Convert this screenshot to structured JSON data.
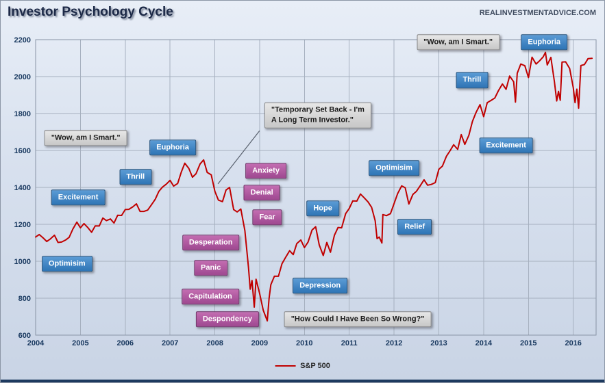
{
  "header": {
    "title": "Investor Psychology Cycle",
    "watermark": "REALINVESTMENTADVICE.COM"
  },
  "legend": {
    "label": "S&P 500"
  },
  "colors": {
    "series": "#c00000",
    "blue_box": "#2e74b5",
    "blue_border": "#1f4e79",
    "pink_box": "#9e4890",
    "pink_border": "#6f3166",
    "gray_box": "#d9d9d9",
    "gray_border": "#8a8a8a",
    "axis_text": "#17375e"
  },
  "chart_data": {
    "type": "line",
    "title": "Investor Psychology Cycle",
    "xlabel": "",
    "ylabel": "",
    "grid": true,
    "legend_position": "bottom",
    "xlim": [
      2004,
      2016.51
    ],
    "ylim": [
      600,
      2200
    ],
    "x_ticks": [
      2004,
      2005,
      2006,
      2007,
      2008,
      2009,
      2010,
      2011,
      2012,
      2013,
      2014,
      2015,
      2016
    ],
    "y_ticks": [
      600,
      800,
      1000,
      1200,
      1400,
      1600,
      1800,
      2000,
      2200
    ],
    "series": [
      {
        "name": "S&P 500",
        "color": "#c00000",
        "points": [
          [
            2004.0,
            1131
          ],
          [
            2004.08,
            1145
          ],
          [
            2004.17,
            1126
          ],
          [
            2004.25,
            1107
          ],
          [
            2004.33,
            1121
          ],
          [
            2004.42,
            1141
          ],
          [
            2004.5,
            1102
          ],
          [
            2004.58,
            1104
          ],
          [
            2004.67,
            1115
          ],
          [
            2004.75,
            1130
          ],
          [
            2004.83,
            1174
          ],
          [
            2004.92,
            1212
          ],
          [
            2005.0,
            1181
          ],
          [
            2005.08,
            1204
          ],
          [
            2005.17,
            1181
          ],
          [
            2005.25,
            1157
          ],
          [
            2005.33,
            1192
          ],
          [
            2005.42,
            1191
          ],
          [
            2005.5,
            1234
          ],
          [
            2005.58,
            1220
          ],
          [
            2005.67,
            1229
          ],
          [
            2005.75,
            1207
          ],
          [
            2005.83,
            1249
          ],
          [
            2005.92,
            1248
          ],
          [
            2006.0,
            1280
          ],
          [
            2006.08,
            1281
          ],
          [
            2006.17,
            1295
          ],
          [
            2006.25,
            1311
          ],
          [
            2006.33,
            1270
          ],
          [
            2006.42,
            1270
          ],
          [
            2006.5,
            1277
          ],
          [
            2006.58,
            1304
          ],
          [
            2006.67,
            1336
          ],
          [
            2006.75,
            1378
          ],
          [
            2006.83,
            1401
          ],
          [
            2006.92,
            1418
          ],
          [
            2007.0,
            1438
          ],
          [
            2007.08,
            1407
          ],
          [
            2007.17,
            1421
          ],
          [
            2007.25,
            1482
          ],
          [
            2007.33,
            1531
          ],
          [
            2007.42,
            1503
          ],
          [
            2007.5,
            1455
          ],
          [
            2007.58,
            1474
          ],
          [
            2007.67,
            1527
          ],
          [
            2007.75,
            1549
          ],
          [
            2007.83,
            1481
          ],
          [
            2007.92,
            1468
          ],
          [
            2008.0,
            1379
          ],
          [
            2008.08,
            1331
          ],
          [
            2008.17,
            1323
          ],
          [
            2008.25,
            1386
          ],
          [
            2008.33,
            1400
          ],
          [
            2008.42,
            1280
          ],
          [
            2008.5,
            1267
          ],
          [
            2008.58,
            1283
          ],
          [
            2008.67,
            1166
          ],
          [
            2008.75,
            969
          ],
          [
            2008.79,
            849
          ],
          [
            2008.83,
            896
          ],
          [
            2008.88,
            752
          ],
          [
            2008.92,
            903
          ],
          [
            2009.0,
            826
          ],
          [
            2009.08,
            735
          ],
          [
            2009.17,
            677
          ],
          [
            2009.21,
            798
          ],
          [
            2009.25,
            873
          ],
          [
            2009.33,
            919
          ],
          [
            2009.42,
            919
          ],
          [
            2009.5,
            987
          ],
          [
            2009.58,
            1021
          ],
          [
            2009.67,
            1057
          ],
          [
            2009.75,
            1036
          ],
          [
            2009.83,
            1096
          ],
          [
            2009.92,
            1115
          ],
          [
            2010.0,
            1074
          ],
          [
            2010.08,
            1104
          ],
          [
            2010.17,
            1169
          ],
          [
            2010.25,
            1187
          ],
          [
            2010.33,
            1089
          ],
          [
            2010.42,
            1031
          ],
          [
            2010.5,
            1102
          ],
          [
            2010.58,
            1049
          ],
          [
            2010.67,
            1141
          ],
          [
            2010.75,
            1183
          ],
          [
            2010.83,
            1181
          ],
          [
            2010.92,
            1258
          ],
          [
            2011.0,
            1286
          ],
          [
            2011.08,
            1327
          ],
          [
            2011.17,
            1326
          ],
          [
            2011.25,
            1364
          ],
          [
            2011.33,
            1345
          ],
          [
            2011.42,
            1321
          ],
          [
            2011.5,
            1292
          ],
          [
            2011.58,
            1219
          ],
          [
            2011.62,
            1123
          ],
          [
            2011.67,
            1131
          ],
          [
            2011.73,
            1099
          ],
          [
            2011.75,
            1253
          ],
          [
            2011.83,
            1247
          ],
          [
            2011.92,
            1258
          ],
          [
            2012.0,
            1312
          ],
          [
            2012.08,
            1366
          ],
          [
            2012.17,
            1408
          ],
          [
            2012.25,
            1398
          ],
          [
            2012.33,
            1310
          ],
          [
            2012.42,
            1362
          ],
          [
            2012.5,
            1379
          ],
          [
            2012.58,
            1407
          ],
          [
            2012.67,
            1441
          ],
          [
            2012.75,
            1412
          ],
          [
            2012.83,
            1416
          ],
          [
            2012.92,
            1426
          ],
          [
            2013.0,
            1498
          ],
          [
            2013.08,
            1515
          ],
          [
            2013.17,
            1569
          ],
          [
            2013.25,
            1598
          ],
          [
            2013.33,
            1631
          ],
          [
            2013.42,
            1606
          ],
          [
            2013.5,
            1686
          ],
          [
            2013.58,
            1633
          ],
          [
            2013.67,
            1682
          ],
          [
            2013.75,
            1757
          ],
          [
            2013.83,
            1806
          ],
          [
            2013.92,
            1848
          ],
          [
            2014.0,
            1783
          ],
          [
            2014.08,
            1859
          ],
          [
            2014.17,
            1872
          ],
          [
            2014.25,
            1884
          ],
          [
            2014.33,
            1924
          ],
          [
            2014.42,
            1960
          ],
          [
            2014.5,
            1931
          ],
          [
            2014.58,
            2003
          ],
          [
            2014.67,
            1972
          ],
          [
            2014.71,
            1862
          ],
          [
            2014.75,
            2018
          ],
          [
            2014.83,
            2068
          ],
          [
            2014.92,
            2059
          ],
          [
            2015.0,
            1995
          ],
          [
            2015.08,
            2105
          ],
          [
            2015.17,
            2068
          ],
          [
            2015.25,
            2086
          ],
          [
            2015.33,
            2107
          ],
          [
            2015.38,
            2131
          ],
          [
            2015.42,
            2063
          ],
          [
            2015.5,
            2104
          ],
          [
            2015.58,
            1972
          ],
          [
            2015.63,
            1868
          ],
          [
            2015.67,
            1920
          ],
          [
            2015.71,
            1872
          ],
          [
            2015.75,
            2079
          ],
          [
            2015.83,
            2080
          ],
          [
            2015.92,
            2044
          ],
          [
            2016.0,
            1940
          ],
          [
            2016.04,
            1859
          ],
          [
            2016.08,
            1932
          ],
          [
            2016.12,
            1829
          ],
          [
            2016.17,
            2060
          ],
          [
            2016.25,
            2065
          ],
          [
            2016.33,
            2097
          ],
          [
            2016.42,
            2099
          ]
        ]
      }
    ],
    "annotations": {
      "stages_positive": [
        {
          "label": "Optimisim",
          "x": 2004.7,
          "y": 985
        },
        {
          "label": "Excitement",
          "x": 2004.95,
          "y": 1344
        },
        {
          "label": "Thrill",
          "x": 2006.23,
          "y": 1456
        },
        {
          "label": "Euphoria",
          "x": 2007.06,
          "y": 1615
        },
        {
          "label": "Hope",
          "x": 2010.41,
          "y": 1285
        },
        {
          "label": "Depression",
          "x": 2010.35,
          "y": 867
        },
        {
          "label": "Relief",
          "x": 2012.46,
          "y": 1185
        },
        {
          "label": "Optimisim",
          "x": 2012.0,
          "y": 1505
        },
        {
          "label": "Excitement",
          "x": 2014.5,
          "y": 1626
        },
        {
          "label": "Thrill",
          "x": 2013.74,
          "y": 1980
        },
        {
          "label": "Euphoria",
          "x": 2015.35,
          "y": 2185
        }
      ],
      "stages_negative": [
        {
          "label": "Anxiety",
          "x": 2009.14,
          "y": 1490
        },
        {
          "label": "Denial",
          "x": 2009.05,
          "y": 1370
        },
        {
          "label": "Fear",
          "x": 2009.17,
          "y": 1237
        },
        {
          "label": "Desperation",
          "x": 2007.91,
          "y": 1100
        },
        {
          "label": "Panic",
          "x": 2007.91,
          "y": 963
        },
        {
          "label": "Capitulation",
          "x": 2007.9,
          "y": 807
        },
        {
          "label": "Despondency",
          "x": 2008.28,
          "y": 685
        }
      ],
      "quotes": [
        {
          "text": "\"Wow, am I Smart.\"",
          "x": 2005.12,
          "y": 1667
        },
        {
          "text": "\"Temporary Set Back - I'm\nA Long Term Investor.\"",
          "x": 2010.3,
          "y": 1790,
          "align": "left"
        },
        {
          "text": "\"How Could I Have Been So Wrong?\"",
          "x": 2011.19,
          "y": 685
        },
        {
          "text": "\"Wow, am I Smart.\"",
          "x": 2013.43,
          "y": 2185
        }
      ],
      "connector": {
        "from": [
          2009.0,
          1707
        ],
        "to": [
          2008.07,
          1419
        ]
      }
    }
  }
}
